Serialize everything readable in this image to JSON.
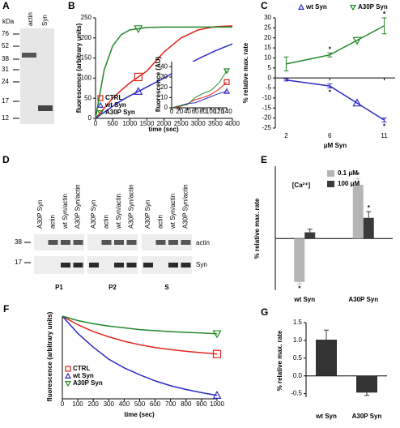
{
  "gel_a": {
    "panel": "A",
    "unit": "kDa",
    "markers": [
      "76",
      "52",
      "38",
      "31",
      "24",
      "17",
      "12"
    ],
    "lanes": [
      "actin",
      "Syn"
    ]
  },
  "gel_d": {
    "panel": "D",
    "lanes": [
      "A30P Syn",
      "actin",
      "wt Syn/actin",
      "A30P Syn/actin"
    ],
    "groups": [
      "P1",
      "P2",
      "S"
    ],
    "markers": [
      "38",
      "17"
    ],
    "rows": [
      "actin",
      "Syn"
    ]
  },
  "chart_data": [
    {
      "panel": "B",
      "type": "line",
      "xlabel": "time (sec)",
      "ylabel": "fluorescence (arbitrary units)",
      "x": [
        0,
        250,
        500,
        750,
        1000,
        1500,
        2000,
        2500,
        3000,
        3500,
        4000
      ],
      "xlim": [
        0,
        4000
      ],
      "xticks": [
        0,
        500,
        1000,
        1500,
        2000,
        2500,
        3000,
        3500,
        4000
      ],
      "ylim": [
        0,
        250
      ],
      "yticks": [
        0,
        50,
        100,
        150,
        200,
        250
      ],
      "series": [
        {
          "name": "CTRL",
          "color": "#e3241d",
          "marker": "square",
          "values": [
            0,
            25,
            50,
            70,
            88,
            118,
            165,
            200,
            220,
            228,
            230
          ]
        },
        {
          "name": "wt Syn",
          "color": "#2b2bc4",
          "marker": "triangle-up",
          "values": [
            0,
            15,
            30,
            44,
            56,
            78,
            100,
            125,
            148,
            168,
            185
          ]
        },
        {
          "name": "A30P Syn",
          "color": "#23892a",
          "marker": "triangle-down",
          "values": [
            0,
            120,
            180,
            208,
            220,
            226,
            227,
            227,
            227,
            227,
            227
          ]
        }
      ],
      "legend": "lower left",
      "inset": {
        "ylabel": "fluorescence (AU)",
        "x": [
          0,
          20,
          40,
          60,
          80,
          100,
          120,
          140
        ],
        "xlim": [
          0,
          140
        ],
        "xticks": [
          0,
          20,
          40,
          60,
          80,
          100,
          120,
          140
        ],
        "ylim": [
          0,
          45
        ],
        "yticks": [
          0,
          10,
          20,
          30,
          40
        ],
        "series": [
          {
            "values": [
              0,
              1,
              4,
              8,
              10,
              13,
              18,
              25
            ]
          },
          {
            "values": [
              0,
              2,
              4,
              5,
              8,
              11,
              14,
              16
            ]
          },
          {
            "values": [
              0,
              2,
              3,
              10,
              14,
              17,
              24,
              36
            ]
          }
        ]
      }
    },
    {
      "panel": "C",
      "type": "line",
      "xlabel": "μM Syn",
      "ylabel": "% relative max. rate",
      "x": [
        2,
        6,
        11
      ],
      "xlim": [
        1,
        12
      ],
      "xticks": [
        2,
        6,
        11
      ],
      "ylim": [
        -25,
        30
      ],
      "yticks": [
        -25,
        -20,
        -15,
        -10,
        -5,
        0,
        5,
        10,
        15,
        20,
        25,
        30
      ],
      "series": [
        {
          "name": "wt Syn",
          "color": "#2b2bc4",
          "marker": "triangle-up",
          "values": [
            -1,
            -4,
            -21
          ],
          "errors": [
            0.5,
            1,
            1
          ]
        },
        {
          "name": "A30P Syn",
          "color": "#23892a",
          "marker": "triangle-down",
          "values": [
            7,
            11.5,
            26
          ],
          "errors": [
            3.5,
            1,
            4
          ]
        }
      ],
      "legend": "top",
      "annotations": [
        {
          "text": "*",
          "series": 0,
          "point": 1
        },
        {
          "text": "*",
          "series": 0,
          "point": 2
        },
        {
          "text": "*",
          "series": 1,
          "point": 1
        },
        {
          "text": "*",
          "series": 1,
          "point": 2
        }
      ]
    },
    {
      "panel": "E",
      "type": "bar",
      "title": "[Ca²⁺]",
      "ylabel": "% relative max. rate",
      "categories": [
        "wt Syn",
        "A30P Syn"
      ],
      "ylim": [
        -25,
        35
      ],
      "series": [
        {
          "name": "0.1 μM",
          "color": "#b5b5b5",
          "values": [
            -21,
            26
          ],
          "errors": [
            1,
            3
          ]
        },
        {
          "name": "100 μM",
          "color": "#3a3a3a",
          "values": [
            3,
            10
          ],
          "errors": [
            1.5,
            3
          ]
        }
      ],
      "legend": "top right",
      "annotations": [
        {
          "text": "*",
          "series": 0,
          "point": 0
        },
        {
          "text": "*",
          "series": 0,
          "point": 1
        },
        {
          "text": "*",
          "series": 1,
          "point": 1
        }
      ]
    },
    {
      "panel": "F",
      "type": "line",
      "xlabel": "time (sec)",
      "ylabel": "fluorescence (arbitrary units)",
      "x": [
        0,
        100,
        200,
        300,
        400,
        500,
        600,
        700,
        800,
        900,
        1000
      ],
      "xlim": [
        0,
        1000
      ],
      "xticks": [
        0,
        100,
        200,
        300,
        400,
        500,
        600,
        700,
        800,
        900,
        1000
      ],
      "ylim": [
        -24,
        0
      ],
      "series": [
        {
          "name": "CTRL",
          "color": "#e3241d",
          "marker": "square",
          "values": [
            0,
            -2.5,
            -4.5,
            -6,
            -7.3,
            -8.3,
            -9.1,
            -9.7,
            -10.2,
            -10.6,
            -11
          ]
        },
        {
          "name": "wt Syn",
          "color": "#2b2bc4",
          "marker": "triangle-up",
          "values": [
            0,
            -5,
            -9,
            -12.5,
            -15,
            -17,
            -18.8,
            -20.2,
            -21.3,
            -22.2,
            -23
          ]
        },
        {
          "name": "A30P Syn",
          "color": "#23892a",
          "marker": "triangle-down",
          "values": [
            0,
            -1.3,
            -2.2,
            -2.9,
            -3.4,
            -3.9,
            -4.2,
            -4.5,
            -4.7,
            -4.9,
            -5.1
          ]
        }
      ],
      "legend": "lower left"
    },
    {
      "panel": "G",
      "type": "bar",
      "ylabel": "% relative max. rate",
      "categories": [
        "wt Syn",
        "A30P Syn"
      ],
      "values": [
        1.02,
        -0.47
      ],
      "errors": [
        0.27,
        0.08
      ],
      "color": "#333333",
      "ylim": [
        -0.6,
        1.5
      ],
      "yticks": [
        {
          "value": -0.5,
          "label": "-0.5"
        },
        {
          "value": 0,
          "label": "0.0"
        },
        {
          "value": 0.5,
          "label": "0.5"
        },
        {
          "value": 1,
          "label": "1.0"
        },
        {
          "value": 1.5,
          "label": "1.5"
        }
      ]
    }
  ]
}
